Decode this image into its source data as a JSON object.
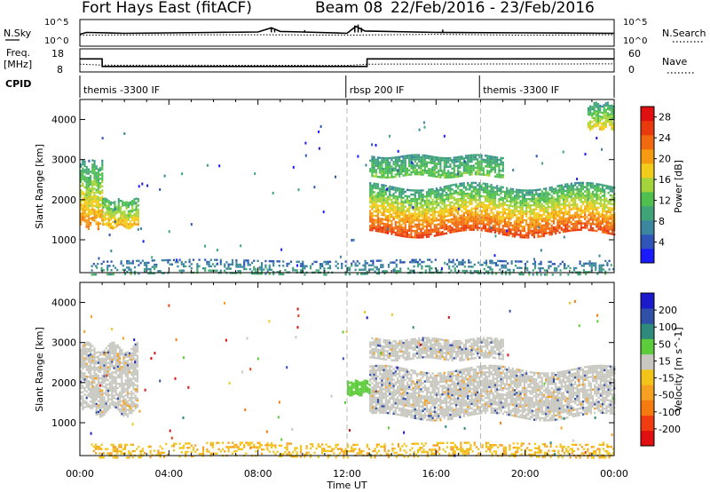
{
  "header": {
    "radar": "Fort Hays East (fitACF)",
    "beam": "Beam 08",
    "dates": "22/Feb/2016 - 23/Feb/2016"
  },
  "nsky_panel": {
    "left_label": "N.Sky",
    "left_ticks": [
      "10^5",
      "10^0"
    ],
    "right_label": "N.Search",
    "right_ticks": [
      "10^5",
      "10^0"
    ]
  },
  "freq_panel": {
    "left_label_line1": "Freq.",
    "left_label_line2": "[MHz]",
    "left_ticks": [
      "18",
      "8"
    ],
    "right_label": "Nave",
    "right_ticks": [
      "60",
      "0"
    ]
  },
  "cpid_panel": {
    "label": "CPID",
    "segments": [
      "themis -3300 IF",
      "rbsp 200 IF",
      "themis -3300 IF"
    ]
  },
  "x_axis": {
    "label": "Time UT",
    "ticks": [
      "00:00",
      "04:00",
      "08:00",
      "12:00",
      "16:00",
      "20:00",
      "00:00"
    ]
  },
  "colors": {
    "power_scale": [
      "#1a1aff",
      "#2f55b8",
      "#3d86a0",
      "#3fa579",
      "#4fbf4f",
      "#a4d43a",
      "#f2cc1a",
      "#f59b12",
      "#f26a10",
      "#e83a0c",
      "#e01010"
    ],
    "velocity_scale": [
      "#1a1acc",
      "#3050a8",
      "#2e8a7a",
      "#5ccc3a",
      "#c8c8c0",
      "#f2c41a",
      "#f5a020",
      "#f57a10",
      "#f03c10",
      "#e01010"
    ]
  },
  "chart_data": [
    {
      "type": "line",
      "panel": "N.Sky / N.Search",
      "x_range_hours": [
        0,
        24
      ],
      "y_scale": "log",
      "y_ticks": [
        "10^0",
        "10^5"
      ],
      "series": [
        {
          "name": "N.Sky",
          "style": "solid",
          "x": [
            0,
            0.3,
            2,
            4,
            6,
            8,
            8.6,
            9,
            10,
            12,
            12.4,
            12.8,
            16,
            20,
            24
          ],
          "y": [
            2.2,
            2.6,
            2.4,
            2.5,
            2.6,
            2.7,
            3.6,
            2.8,
            2.7,
            2.4,
            3.9,
            2.9,
            2.6,
            2.5,
            2.4
          ]
        },
        {
          "name": "N.Search",
          "style": "dotted",
          "x": [
            0,
            4,
            8,
            12,
            16,
            20,
            24
          ],
          "y": [
            2.0,
            2.1,
            2.1,
            2.0,
            2.2,
            2.0,
            2.1
          ]
        }
      ]
    },
    {
      "type": "line",
      "panel": "Freq. / Nave",
      "x_range_hours": [
        0,
        24
      ],
      "left_axis": {
        "label": "Freq. [MHz]",
        "ticks": [
          8,
          18
        ]
      },
      "right_axis": {
        "label": "Nave",
        "ticks": [
          0,
          60
        ]
      },
      "series": [
        {
          "name": "Freq.",
          "style": "solid",
          "axis": "left",
          "x": [
            0,
            1.0,
            1.0,
            11.9,
            11.9,
            12.9,
            12.9,
            24
          ],
          "y": [
            15.5,
            15.5,
            10.5,
            10.5,
            10.5,
            10.5,
            15.5,
            15.5
          ]
        },
        {
          "name": "Nave",
          "style": "dotted",
          "axis": "right",
          "x": [
            0,
            1,
            12,
            13,
            24
          ],
          "y": [
            24,
            20,
            19,
            24,
            25
          ]
        }
      ]
    },
    {
      "type": "table",
      "panel": "CPID",
      "segments": [
        {
          "label": "themis -3300 IF",
          "start_hour": 0,
          "end_hour": 11.95
        },
        {
          "label": "rbsp 200 IF",
          "start_hour": 11.95,
          "end_hour": 17.95
        },
        {
          "label": "themis -3300 IF",
          "start_hour": 17.95,
          "end_hour": 24
        }
      ]
    },
    {
      "type": "heatmap",
      "panel": "Power",
      "xlabel": "Time UT",
      "ylabel": "Slant Range [km]",
      "x_range_hours": [
        0,
        24
      ],
      "y_range_km": [
        180,
        4500
      ],
      "y_ticks": [
        1000,
        2000,
        3000,
        4000
      ],
      "colorbar": {
        "label": "Power [dB]",
        "range": [
          0,
          30
        ],
        "ticks": [
          4,
          8,
          12,
          16,
          20,
          24,
          28
        ]
      },
      "regions": [
        {
          "t0": 0.0,
          "t1": 1.0,
          "r_low": 1400,
          "r_high": 2900,
          "p_edge": 8,
          "p_core": 22
        },
        {
          "t0": 1.0,
          "t1": 2.6,
          "r_low": 1350,
          "r_high": 2000,
          "p_edge": 10,
          "p_core": 20
        },
        {
          "t0": 13.0,
          "t1": 24.0,
          "r_low": 1150,
          "r_high": 2350,
          "p_edge": 8,
          "p_core": 27
        },
        {
          "t0": 13.0,
          "t1": 19.0,
          "r_low": 2600,
          "r_high": 3100,
          "p_edge": 8,
          "p_core": 13
        },
        {
          "t0": 22.8,
          "t1": 24.0,
          "r_low": 3800,
          "r_high": 4400,
          "p_edge": 8,
          "p_core": 18
        },
        {
          "t0": 0.5,
          "t1": 24.0,
          "r_low": 180,
          "r_high": 500,
          "p_edge": 4,
          "p_core": 9
        }
      ]
    },
    {
      "type": "heatmap",
      "panel": "Velocity",
      "xlabel": "Time UT",
      "ylabel": "Slant Range [km]",
      "x_range_hours": [
        0,
        24
      ],
      "y_range_km": [
        180,
        4500
      ],
      "y_ticks": [
        1000,
        2000,
        3000,
        4000
      ],
      "colorbar": {
        "label": "Velocity [m s^-1]",
        "ticks": [
          200,
          100,
          50,
          15,
          -15,
          -50,
          -100,
          -200
        ]
      },
      "regions": [
        {
          "t0": 0.0,
          "t1": 2.6,
          "r_low": 1300,
          "r_high": 2900,
          "v_core": 0
        },
        {
          "t0": 13.0,
          "t1": 24.0,
          "r_low": 1150,
          "r_high": 2350,
          "v_core": 0
        },
        {
          "t0": 13.0,
          "t1": 19.0,
          "r_low": 2600,
          "r_high": 3100,
          "v_core": 0
        },
        {
          "t0": 12.0,
          "t1": 13.0,
          "r_low": 1700,
          "r_high": 2050,
          "v_core": 40
        },
        {
          "t0": 0.5,
          "t1": 24.0,
          "r_low": 180,
          "r_high": 500,
          "v_core": -40
        }
      ]
    }
  ]
}
